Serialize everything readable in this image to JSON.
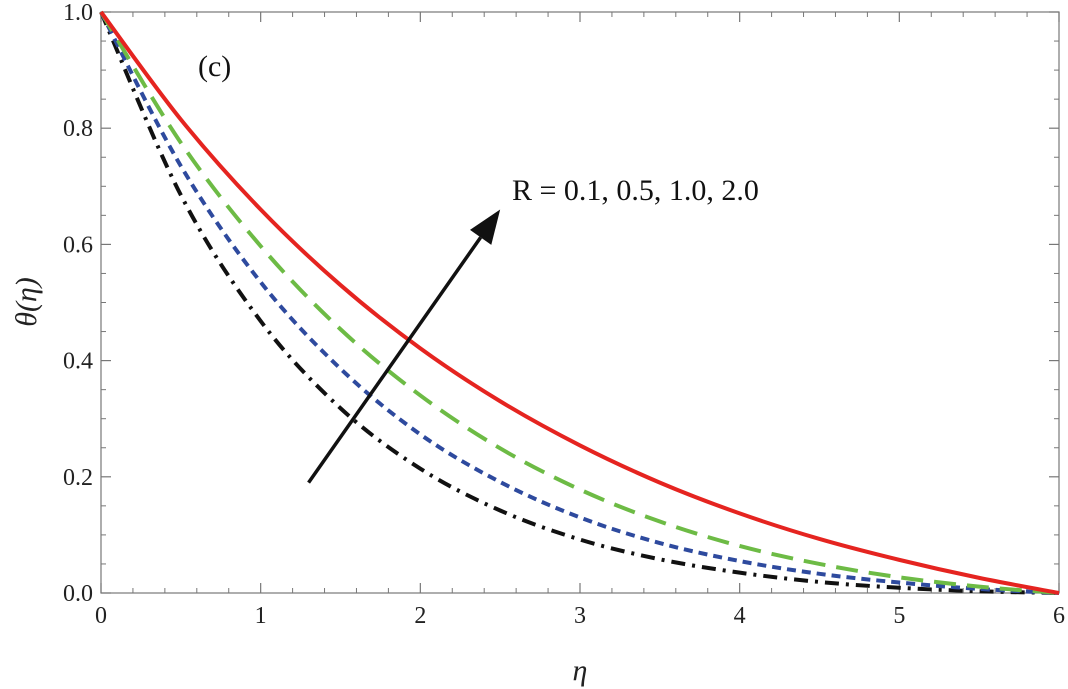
{
  "chart_data": {
    "type": "line",
    "panel_label": "(c)",
    "xlabel": "η",
    "ylabel": "θ(η)",
    "xlim": [
      0,
      6
    ],
    "ylim": [
      0,
      1
    ],
    "x_ticks": [
      "0",
      "1",
      "2",
      "3",
      "4",
      "5",
      "6"
    ],
    "y_ticks": [
      "0.0",
      "0.2",
      "0.4",
      "0.6",
      "0.8",
      "1.0"
    ],
    "annotation": "R = 0.1, 0.5, 1.0, 2.0",
    "arrow": {
      "from": [
        1.3,
        0.19
      ],
      "to": [
        2.5,
        0.66
      ]
    },
    "x": [
      0,
      0.5,
      1,
      1.5,
      2,
      2.5,
      3,
      3.5,
      4,
      4.5,
      5,
      5.5,
      6
    ],
    "series": [
      {
        "name": "R = 0.1",
        "style": "dash-dot",
        "color": "#111111",
        "values": [
          1.0,
          0.685,
          0.468,
          0.318,
          0.214,
          0.142,
          0.092,
          0.058,
          0.035,
          0.019,
          0.009,
          0.003,
          0.0
        ]
      },
      {
        "name": "R = 0.5",
        "style": "short-dash",
        "color": "#2e4a9e",
        "values": [
          1.0,
          0.735,
          0.535,
          0.386,
          0.273,
          0.191,
          0.13,
          0.086,
          0.055,
          0.033,
          0.018,
          0.007,
          0.0
        ]
      },
      {
        "name": "R = 1.0",
        "style": "long-dash",
        "color": "#6dbb45",
        "values": [
          1.0,
          0.775,
          0.597,
          0.454,
          0.34,
          0.249,
          0.178,
          0.123,
          0.081,
          0.05,
          0.027,
          0.011,
          0.0
        ]
      },
      {
        "name": "R = 2.0",
        "style": "solid",
        "color": "#e52420",
        "values": [
          1.0,
          0.815,
          0.66,
          0.53,
          0.421,
          0.33,
          0.254,
          0.19,
          0.137,
          0.093,
          0.057,
          0.026,
          0.0
        ]
      }
    ]
  }
}
